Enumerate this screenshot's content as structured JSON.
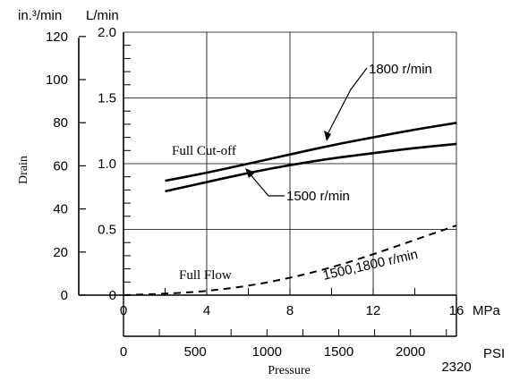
{
  "chart_data": {
    "type": "line",
    "title": "",
    "ylabel": "Drain",
    "xlabel": "Pressure",
    "x_axes": [
      {
        "unit": "MPa",
        "ticks": [
          "0",
          "4",
          "8",
          "12",
          "16"
        ],
        "range": [
          0,
          16
        ]
      },
      {
        "unit": "PSI",
        "ticks": [
          "0",
          "500",
          "1000",
          "1500",
          "2000"
        ],
        "range": [
          0,
          2320
        ],
        "end_label": "2320"
      }
    ],
    "y_axes": [
      {
        "unit": "in.³/min",
        "ticks": [
          "0",
          "20",
          "40",
          "60",
          "80",
          "100",
          "120"
        ],
        "range": [
          0,
          122
        ]
      },
      {
        "unit": "L/min",
        "ticks": [
          "0",
          "0.5",
          "1.0",
          "1.5",
          "2.0"
        ],
        "range": [
          0,
          2.0
        ]
      }
    ],
    "grid": true,
    "series": [
      {
        "name": "1800 r/min",
        "style": "solid",
        "x": [
          2,
          4,
          6,
          8,
          10,
          12,
          14,
          16
        ],
        "y": [
          0.87,
          0.93,
          1.0,
          1.07,
          1.14,
          1.2,
          1.26,
          1.31
        ]
      },
      {
        "name": "1500 r/min",
        "style": "solid",
        "x": [
          2,
          4,
          6,
          8,
          10,
          12,
          14,
          16
        ],
        "y": [
          0.79,
          0.86,
          0.93,
          0.99,
          1.04,
          1.08,
          1.12,
          1.15
        ]
      },
      {
        "name": "1500,1800 r/min",
        "style": "dashed",
        "x": [
          0,
          2,
          4,
          6,
          8,
          10,
          12,
          14,
          16
        ],
        "y": [
          0.0,
          0.01,
          0.03,
          0.07,
          0.13,
          0.21,
          0.31,
          0.42,
          0.53
        ]
      }
    ],
    "annotations": [
      "Full Cut-off",
      "Full Flow"
    ]
  }
}
